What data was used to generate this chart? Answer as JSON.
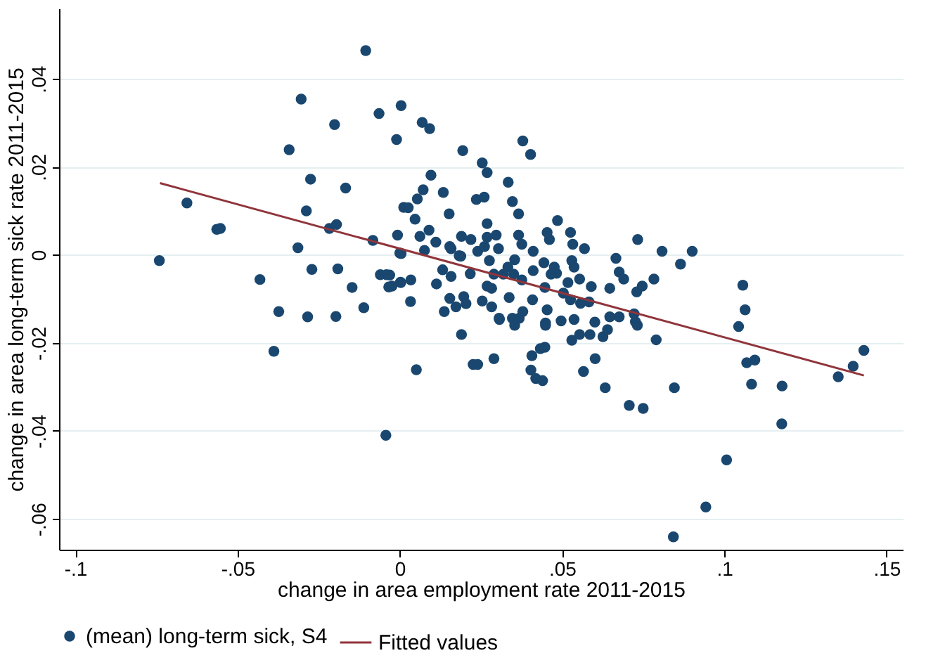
{
  "chart_data": {
    "type": "scatter",
    "xlabel": "change in area employment rate 2011-2015",
    "ylabel": "change in area long-term sick rate 2011-2015",
    "xlim": [
      -0.105,
      0.155
    ],
    "ylim": [
      -0.067,
      0.056
    ],
    "xticks": [
      {
        "value": -0.1,
        "label": "-.1"
      },
      {
        "value": -0.05,
        "label": "-.05"
      },
      {
        "value": 0,
        "label": "0"
      },
      {
        "value": 0.05,
        "label": ".05"
      },
      {
        "value": 0.1,
        "label": ".1"
      },
      {
        "value": 0.15,
        "label": ".15"
      }
    ],
    "yticks": [
      {
        "value": -0.06,
        "label": "-.06"
      },
      {
        "value": -0.04,
        "label": "-.04"
      },
      {
        "value": -0.02,
        "label": "-.02"
      },
      {
        "value": 0,
        "label": "0"
      },
      {
        "value": 0.02,
        "label": ".02"
      },
      {
        "value": 0.04,
        "label": ".04"
      }
    ],
    "grid": "y",
    "legend": "bottom",
    "series": [
      {
        "name": "(mean) long-term sick, S4",
        "marker": "circle",
        "color": "#1a476f",
        "x": [
          -0.0105,
          -0.0304,
          -0.0064,
          0.0004,
          -0.0201,
          -0.001,
          -0.0341,
          -0.0275,
          -0.0167,
          -0.0656,
          -0.0288,
          -0.0564,
          -0.0553,
          -0.0217,
          -0.0195,
          -0.0083,
          -0.0007,
          0.0012,
          -0.0314,
          0.0,
          -0.0741,
          -0.0431,
          -0.0271,
          -0.0191,
          -0.0147,
          -0.006,
          -0.0041,
          -0.0034,
          0.0002,
          -0.0373,
          -0.0284,
          -0.0197,
          -0.0111,
          0.0003,
          0.0034,
          0.0033,
          0.0113,
          0.0137,
          0.0154,
          0.0197,
          0.0173,
          0.0204,
          0.019,
          -0.0388,
          0.0051,
          -0.0043,
          0.0226,
          0.0132,
          0.0158,
          0.0188,
          0.0158,
          0.0217,
          0.0069,
          0.0092,
          0.0194,
          0.0379,
          0.0403,
          0.0254,
          0.0269,
          0.0096,
          0.0334,
          0.0072,
          0.0054,
          0.0026,
          0.0134,
          0.0236,
          0.026,
          0.0347,
          0.0366,
          0.0152,
          0.0047,
          0.0269,
          0.0486,
          0.0062,
          0.009,
          0.0111,
          0.019,
          0.0219,
          0.0004,
          0.0076,
          0.0154,
          0.0183,
          0.024,
          0.0269,
          0.0297,
          0.0261,
          0.0276,
          0.0304,
          0.0366,
          0.0376,
          0.0354,
          0.0411,
          0.0333,
          0.0319,
          0.0351,
          0.0454,
          0.0461,
          0.0444,
          0.0476,
          0.0526,
          0.0533,
          0.0569,
          0.053,
          0.0537,
          0.0666,
          0.0676,
          0.069,
          0.0733,
          0.0808,
          0.0783,
          0.0747,
          0.073,
          0.0647,
          0.059,
          -0.0031,
          -0.0024,
          0.029,
          0.0269,
          0.0283,
          0.0376,
          0.0411,
          0.0447,
          0.0483,
          0.0466,
          0.0518,
          0.0504,
          0.0526,
          0.0554,
          0.0583,
          0.0557,
          0.0254,
          0.0283,
          0.0337,
          0.0409,
          0.0454,
          0.0306,
          0.0347,
          0.0379,
          0.0368,
          0.0497,
          0.0537,
          0.0601,
          0.0647,
          0.0676,
          0.0722,
          0.0726,
          0.0449,
          0.0901,
          0.0865,
          0.1057,
          0.1064,
          0.1044,
          0.079,
          0.1069,
          0.1094,
          0.1084,
          0.1178,
          0.1177,
          0.1007,
          0.0943,
          0.0843,
          0.0846,
          0.0707,
          0.075,
          0.0633,
          0.0566,
          0.0602,
          0.1351,
          0.1397,
          0.143,
          0.053,
          0.0554,
          0.0586,
          0.0626,
          0.064,
          0.0732,
          0.0447,
          0.0433,
          0.0407,
          0.0404,
          0.0419,
          0.044,
          0.024,
          0.029,
          0.0307,
          0.0354,
          0.0449
        ],
        "values": [
          0.0464,
          0.0354,
          0.0321,
          0.0339,
          0.0296,
          0.0262,
          0.0239,
          0.0172,
          0.0152,
          0.0118,
          0.01,
          0.0058,
          0.006,
          0.006,
          0.0069,
          0.0033,
          0.0045,
          0.0108,
          0.0016,
          0.0004,
          -0.0013,
          -0.0056,
          -0.0033,
          -0.0032,
          -0.0074,
          -0.0045,
          -0.0045,
          -0.0073,
          -0.0062,
          -0.0129,
          -0.0141,
          -0.014,
          -0.012,
          -0.0063,
          -0.0057,
          -0.0106,
          -0.0066,
          -0.0129,
          -0.0099,
          -0.0095,
          -0.0118,
          -0.0111,
          -0.0181,
          -0.0219,
          -0.0261,
          -0.041,
          -0.0249,
          -0.0034,
          -0.0049,
          -0.0003,
          0.0014,
          -0.0043,
          0.0301,
          0.0287,
          0.0237,
          0.0259,
          0.0228,
          0.0209,
          0.0187,
          0.0181,
          0.0165,
          0.0148,
          0.0127,
          0.0107,
          0.0142,
          0.0126,
          0.0131,
          0.0121,
          0.0093,
          0.0093,
          0.0081,
          0.0071,
          0.0078,
          0.0042,
          0.0056,
          0.0029,
          0.0042,
          0.0035,
          0.0003,
          0.001,
          0.0019,
          -0.0002,
          0.0008,
          0.004,
          0.0045,
          0.0019,
          -0.0013,
          0.0014,
          0.0045,
          0.0024,
          -0.0011,
          0.0008,
          -0.0028,
          -0.0044,
          -0.0044,
          0.0051,
          0.0035,
          -0.0018,
          -0.0028,
          0.0051,
          0.0024,
          0.0014,
          -0.0013,
          -0.0028,
          -0.0008,
          -0.0039,
          -0.0055,
          0.0035,
          0.0008,
          -0.0055,
          -0.0071,
          -0.0084,
          -0.0076,
          -0.0072,
          -0.0046,
          -0.0071,
          -0.0044,
          -0.0071,
          -0.0076,
          -0.0057,
          -0.0036,
          -0.0074,
          -0.0042,
          -0.0044,
          -0.0063,
          -0.0087,
          -0.0102,
          -0.0055,
          -0.0107,
          -0.011,
          -0.0105,
          -0.0118,
          -0.0097,
          -0.0102,
          -0.0125,
          -0.0144,
          -0.0144,
          -0.0129,
          -0.0144,
          -0.015,
          -0.0147,
          -0.0153,
          -0.0141,
          -0.0141,
          -0.0134,
          -0.0152,
          -0.0155,
          0.0008,
          -0.0021,
          -0.0069,
          -0.0125,
          -0.0163,
          -0.0193,
          -0.0245,
          -0.0239,
          -0.0294,
          -0.0298,
          -0.0384,
          -0.0466,
          -0.0573,
          -0.0641,
          -0.0302,
          -0.0342,
          -0.0349,
          -0.0302,
          -0.0265,
          -0.0236,
          -0.0277,
          -0.0253,
          -0.0217,
          -0.0194,
          -0.0181,
          -0.0181,
          -0.0186,
          -0.017,
          -0.016,
          -0.021,
          -0.0213,
          -0.0229,
          -0.0262,
          -0.0281,
          -0.0286,
          -0.0249,
          -0.0236,
          -0.0147,
          -0.016,
          -0.016
        ]
      },
      {
        "name": "Fitted values",
        "type": "line",
        "marker": "none",
        "color": "#90353b",
        "x": [
          -0.0739,
          0.143
        ],
        "values": [
          0.0163,
          -0.0274
        ]
      }
    ]
  }
}
